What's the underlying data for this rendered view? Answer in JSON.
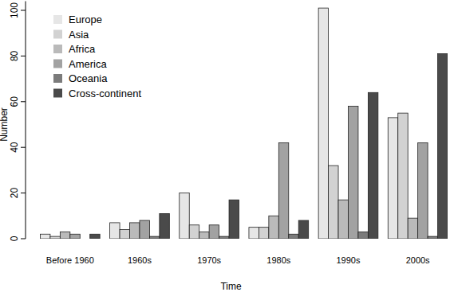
{
  "chart_data": {
    "type": "bar",
    "x_label": "Time",
    "y_label": "Number",
    "categories": [
      "Before 1960",
      "1960s",
      "1970s",
      "1980s",
      "1990s",
      "2000s"
    ],
    "series": [
      {
        "name": "Europe",
        "color": "#e6e6e6",
        "values": [
          2,
          7,
          20,
          5,
          101,
          53
        ]
      },
      {
        "name": "Asia",
        "color": "#d2d2d2",
        "values": [
          1,
          4,
          6,
          5,
          32,
          55
        ]
      },
      {
        "name": "Africa",
        "color": "#bababa",
        "values": [
          3,
          7,
          3,
          10,
          17,
          9
        ]
      },
      {
        "name": "America",
        "color": "#a2a2a2",
        "values": [
          2,
          8,
          6,
          42,
          58,
          42
        ]
      },
      {
        "name": "Oceania",
        "color": "#7b7b7b",
        "values": [
          0,
          1,
          1,
          2,
          3,
          1
        ]
      },
      {
        "name": "Cross-continent",
        "color": "#4a4a4a",
        "values": [
          2,
          11,
          17,
          8,
          64,
          81
        ]
      }
    ],
    "ylim": [
      0,
      104
    ],
    "yticks": [
      0,
      20,
      40,
      60,
      80,
      100
    ],
    "legend": "top-left",
    "grid": false
  }
}
